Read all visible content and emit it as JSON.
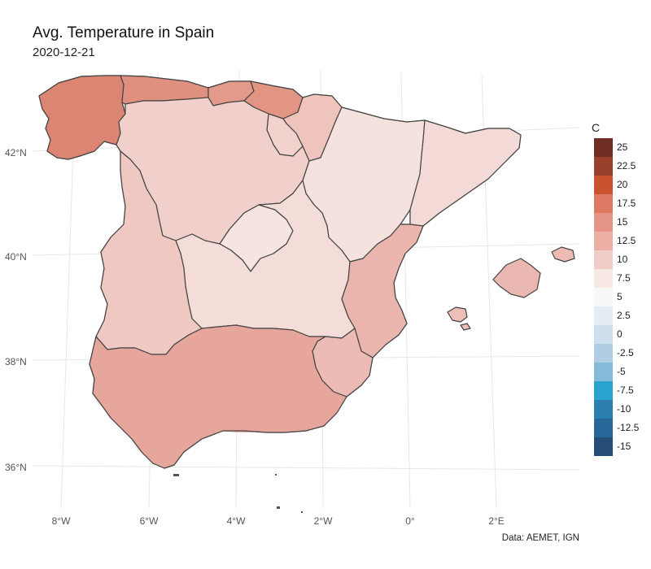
{
  "title": "Avg. Temperature in Spain",
  "subtitle": "2020-12-21",
  "caption": "Data: AEMET, IGN",
  "chart_data": {
    "type": "heatmap",
    "title": "Avg. Temperature in Spain",
    "subtitle": "2020-12-21",
    "legend_title": "C",
    "legend_placement": "right",
    "legend_breaks": [
      "25",
      "22.5",
      "20",
      "17.5",
      "15",
      "12.5",
      "10",
      "7.5",
      "5",
      "2.5",
      "0",
      "-2.5",
      "-5",
      "-7.5",
      "-10",
      "-12.5",
      "-15"
    ],
    "legend_colors": [
      "#6e2e23",
      "#97402b",
      "#c8532e",
      "#dd7a63",
      "#e59586",
      "#ebafa6",
      "#f1cdc9",
      "#f7e8e6",
      "#f8f8f8",
      "#e4ecf4",
      "#d0dfed",
      "#b0cde4",
      "#84bbd8",
      "#2ba3cf",
      "#2a7fb0",
      "#27679a",
      "#264d78"
    ],
    "x_ticks": [
      "8°W",
      "6°W",
      "4°W",
      "2°W",
      "0°",
      "2°E"
    ],
    "y_ticks": [
      "42°N",
      "40°N",
      "38°N",
      "36°N"
    ],
    "grid": true,
    "regions": [
      {
        "name": "Galicia",
        "temp": 15
      },
      {
        "name": "Asturias",
        "temp": 15
      },
      {
        "name": "Cantabria",
        "temp": 14
      },
      {
        "name": "País Vasco",
        "temp": 14
      },
      {
        "name": "Navarra",
        "temp": 10
      },
      {
        "name": "La Rioja",
        "temp": 10
      },
      {
        "name": "Castilla y León",
        "temp": 10
      },
      {
        "name": "Aragón",
        "temp": 7.5
      },
      {
        "name": "Cataluña",
        "temp": 8
      },
      {
        "name": "Madrid",
        "temp": 7.5
      },
      {
        "name": "Castilla-La Mancha",
        "temp": 8.5
      },
      {
        "name": "Extremadura",
        "temp": 10
      },
      {
        "name": "Comunidad Valenciana",
        "temp": 11
      },
      {
        "name": "Murcia",
        "temp": 11
      },
      {
        "name": "Andalucía",
        "temp": 12.5
      },
      {
        "name": "Islas Baleares",
        "temp": 11
      }
    ]
  }
}
